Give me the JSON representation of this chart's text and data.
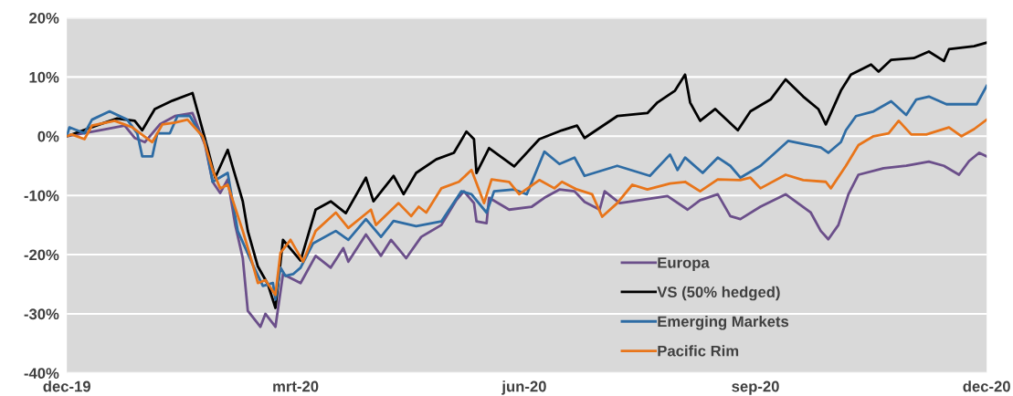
{
  "chart_data": {
    "type": "line",
    "xlim": [
      "2019-12-31",
      "2020-12-31"
    ],
    "xticks": [
      {
        "value": "2019-12-31",
        "label": "dec-19"
      },
      {
        "value": "2020-03-31",
        "label": "mrt-20"
      },
      {
        "value": "2020-06-30",
        "label": "jun-20"
      },
      {
        "value": "2020-09-30",
        "label": "sep-20"
      },
      {
        "value": "2020-12-31",
        "label": "dec-20"
      }
    ],
    "ylim": [
      -40,
      20
    ],
    "yticks": [
      {
        "value": -40,
        "label": "-40%"
      },
      {
        "value": -30,
        "label": "-30%"
      },
      {
        "value": -20,
        "label": "-20%"
      },
      {
        "value": -10,
        "label": "-10%"
      },
      {
        "value": 0,
        "label": "0%"
      },
      {
        "value": 10,
        "label": "10%"
      },
      {
        "value": 20,
        "label": "20%"
      }
    ],
    "grid": "y",
    "legend": "bottom right",
    "marker": "none",
    "line_style": "solid",
    "series": [
      {
        "name": "Europa",
        "color": "#6b4f8a",
        "x": [
          "2019-12-31",
          "2020-01-13",
          "2020-01-23",
          "2020-01-27",
          "2020-01-31",
          "2020-02-06",
          "2020-02-12",
          "2020-02-19",
          "2020-02-24",
          "2020-02-27",
          "2020-03-01",
          "2020-03-04",
          "2020-03-07",
          "2020-03-10",
          "2020-03-12",
          "2020-03-17",
          "2020-03-19",
          "2020-03-23",
          "2020-03-26",
          "2020-04-02",
          "2020-04-08",
          "2020-04-14",
          "2020-04-19",
          "2020-04-21",
          "2020-04-28",
          "2020-05-04",
          "2020-05-08",
          "2020-05-14",
          "2020-05-20",
          "2020-05-28",
          "2020-06-03",
          "2020-06-06",
          "2020-06-10",
          "2020-06-11",
          "2020-06-15",
          "2020-06-16",
          "2020-06-24",
          "2020-07-03",
          "2020-07-08",
          "2020-07-14",
          "2020-07-20",
          "2020-07-24",
          "2020-07-30",
          "2020-08-01",
          "2020-08-07",
          "2020-08-15",
          "2020-08-26",
          "2020-09-03",
          "2020-09-08",
          "2020-09-15",
          "2020-09-20",
          "2020-09-24",
          "2020-10-02",
          "2020-10-12",
          "2020-10-22",
          "2020-10-26",
          "2020-10-29",
          "2020-11-02",
          "2020-11-06",
          "2020-11-10",
          "2020-11-20",
          "2020-11-29",
          "2020-12-08",
          "2020-12-14",
          "2020-12-20",
          "2020-12-24",
          "2020-12-28",
          "2020-12-31"
        ],
        "values": [
          0,
          1,
          1.8,
          -0.3,
          -1,
          2,
          3.4,
          3.9,
          -1.5,
          -7.7,
          -9.6,
          -7.3,
          -15,
          -20.6,
          -29.5,
          -32.2,
          -30,
          -32.2,
          -23.3,
          -24.8,
          -20.2,
          -22.2,
          -18.9,
          -21.2,
          -16.6,
          -20.2,
          -17.5,
          -20.6,
          -17,
          -15,
          -10.8,
          -9.3,
          -11.3,
          -14.4,
          -14.7,
          -10.4,
          -12.4,
          -11.9,
          -10.4,
          -9,
          -9.3,
          -11.1,
          -12.4,
          -9.3,
          -11.3,
          -10.8,
          -10.1,
          -12.4,
          -10.8,
          -9.8,
          -13.5,
          -14,
          -11.9,
          -9.8,
          -12.9,
          -16,
          -17.4,
          -15,
          -9.8,
          -6.5,
          -5.4,
          -5,
          -4.3,
          -5,
          -6.5,
          -4.2,
          -2.8,
          -3.4
        ]
      },
      {
        "name": "VS (50% hedged)",
        "color": "#000000",
        "x": [
          "2019-12-31",
          "2020-01-13",
          "2020-01-20",
          "2020-01-27",
          "2020-01-30",
          "2020-02-04",
          "2020-02-11",
          "2020-02-19",
          "2020-02-25",
          "2020-02-28",
          "2020-03-04",
          "2020-03-10",
          "2020-03-12",
          "2020-03-16",
          "2020-03-20",
          "2020-03-23",
          "2020-03-26",
          "2020-04-02",
          "2020-04-08",
          "2020-04-14",
          "2020-04-20",
          "2020-04-28",
          "2020-05-01",
          "2020-05-09",
          "2020-05-13",
          "2020-05-18",
          "2020-05-26",
          "2020-06-02",
          "2020-06-07",
          "2020-06-10",
          "2020-06-11",
          "2020-06-16",
          "2020-06-26",
          "2020-07-06",
          "2020-07-15",
          "2020-07-21",
          "2020-07-24",
          "2020-08-06",
          "2020-08-18",
          "2020-08-22",
          "2020-08-29",
          "2020-09-02",
          "2020-09-04",
          "2020-09-08",
          "2020-09-14",
          "2020-09-23",
          "2020-09-28",
          "2020-10-06",
          "2020-10-12",
          "2020-10-19",
          "2020-10-25",
          "2020-10-28",
          "2020-11-03",
          "2020-11-07",
          "2020-11-15",
          "2020-11-18",
          "2020-11-23",
          "2020-12-02",
          "2020-12-08",
          "2020-12-14",
          "2020-12-16",
          "2020-12-26",
          "2020-12-31"
        ],
        "values": [
          0,
          2,
          3,
          2.6,
          1,
          4.6,
          6,
          7.3,
          -2,
          -7,
          -2.3,
          -11,
          -16,
          -22,
          -25,
          -29,
          -17.5,
          -21,
          -12.4,
          -11,
          -13,
          -7,
          -11,
          -6.7,
          -9.8,
          -6.2,
          -3.9,
          -2.8,
          0.8,
          -0.5,
          -6.2,
          -2,
          -5.1,
          -0.5,
          1,
          1.8,
          -0.3,
          3.4,
          3.9,
          5.7,
          7.7,
          10.4,
          5.7,
          2.6,
          4.6,
          1,
          4.2,
          6.2,
          9.6,
          6.7,
          4.6,
          2,
          7.7,
          10.4,
          12.1,
          10.9,
          12.9,
          13.2,
          14.3,
          12.7,
          14.7,
          15.2,
          15.8
        ]
      },
      {
        "name": "Emerging Markets",
        "color": "#2e6ca4",
        "x": [
          "2019-12-31",
          "2020-01-01",
          "2020-01-07",
          "2020-01-10",
          "2020-01-17",
          "2020-01-24",
          "2020-01-28",
          "2020-01-30",
          "2020-02-03",
          "2020-02-05",
          "2020-02-10",
          "2020-02-13",
          "2020-02-18",
          "2020-02-24",
          "2020-02-27",
          "2020-03-04",
          "2020-03-08",
          "2020-03-14",
          "2020-03-18",
          "2020-03-22",
          "2020-03-23",
          "2020-03-25",
          "2020-03-27",
          "2020-03-30",
          "2020-04-02",
          "2020-04-07",
          "2020-04-16",
          "2020-04-21",
          "2020-04-28",
          "2020-05-04",
          "2020-05-09",
          "2020-05-18",
          "2020-05-28",
          "2020-06-05",
          "2020-06-09",
          "2020-06-15",
          "2020-06-18",
          "2020-06-26",
          "2020-07-01",
          "2020-07-08",
          "2020-07-14",
          "2020-07-20",
          "2020-07-24",
          "2020-08-06",
          "2020-08-19",
          "2020-08-27",
          "2020-08-30",
          "2020-09-02",
          "2020-09-09",
          "2020-09-15",
          "2020-09-20",
          "2020-09-24",
          "2020-10-02",
          "2020-10-07",
          "2020-10-13",
          "2020-10-26",
          "2020-10-29",
          "2020-11-03",
          "2020-11-05",
          "2020-11-09",
          "2020-11-16",
          "2020-11-23",
          "2020-11-29",
          "2020-12-03",
          "2020-12-08",
          "2020-12-15",
          "2020-12-21",
          "2020-12-27",
          "2020-12-31"
        ],
        "values": [
          0,
          1.5,
          0.5,
          2.8,
          4.2,
          2.8,
          0.5,
          -3.4,
          -3.4,
          0.5,
          0.5,
          3.4,
          3.4,
          -1,
          -7.7,
          -6.2,
          -16,
          -21.7,
          -25.3,
          -24.8,
          -27.6,
          -22.2,
          -23.6,
          -23.3,
          -22.2,
          -18.1,
          -16,
          -17.5,
          -14,
          -17,
          -14.3,
          -15.2,
          -14.4,
          -9.3,
          -9.8,
          -12.9,
          -9.3,
          -9,
          -9.8,
          -2.6,
          -4.7,
          -3.6,
          -6.7,
          -5,
          -6.7,
          -3.1,
          -5.7,
          -3.6,
          -6.2,
          -3.6,
          -5,
          -7,
          -5,
          -3.1,
          -0.8,
          -1.9,
          -2.8,
          -1,
          1,
          3.4,
          4.2,
          5.9,
          3.6,
          6.2,
          6.7,
          5.4,
          5.4,
          5.4,
          8.5
        ]
      },
      {
        "name": "Pacific Rim",
        "color": "#e8751a",
        "x": [
          "2019-12-31",
          "2020-01-02",
          "2020-01-07",
          "2020-01-10",
          "2020-01-19",
          "2020-01-26",
          "2020-02-03",
          "2020-02-07",
          "2020-02-12",
          "2020-02-17",
          "2020-02-23",
          "2020-02-27",
          "2020-03-01",
          "2020-03-04",
          "2020-03-10",
          "2020-03-14",
          "2020-03-16",
          "2020-03-19",
          "2020-03-23",
          "2020-03-25",
          "2020-03-29",
          "2020-04-03",
          "2020-04-08",
          "2020-04-16",
          "2020-04-21",
          "2020-04-30",
          "2020-05-02",
          "2020-05-11",
          "2020-05-16",
          "2020-05-19",
          "2020-05-22",
          "2020-05-28",
          "2020-06-04",
          "2020-06-09",
          "2020-06-14",
          "2020-06-17",
          "2020-06-24",
          "2020-06-28",
          "2020-07-06",
          "2020-07-12",
          "2020-07-15",
          "2020-07-21",
          "2020-07-27",
          "2020-07-31",
          "2020-08-06",
          "2020-08-12",
          "2020-08-18",
          "2020-08-27",
          "2020-09-02",
          "2020-09-08",
          "2020-09-15",
          "2020-09-24",
          "2020-09-28",
          "2020-10-02",
          "2020-10-12",
          "2020-10-19",
          "2020-10-28",
          "2020-10-30",
          "2020-11-05",
          "2020-11-10",
          "2020-11-16",
          "2020-11-22",
          "2020-11-26",
          "2020-12-01",
          "2020-12-07",
          "2020-12-16",
          "2020-12-21",
          "2020-12-26",
          "2020-12-31"
        ],
        "values": [
          0,
          0.3,
          -0.5,
          1.8,
          2.6,
          1.5,
          -1,
          2,
          2.3,
          2.8,
          0,
          -5.7,
          -8.8,
          -8.2,
          -16,
          -21.7,
          -24.8,
          -24.3,
          -26.8,
          -19.7,
          -17.5,
          -21.2,
          -16,
          -12.9,
          -15.5,
          -12.4,
          -15,
          -11.3,
          -13.5,
          -11.9,
          -12.9,
          -8.8,
          -7.7,
          -5.7,
          -11.3,
          -7.3,
          -7.7,
          -9.8,
          -7.4,
          -8.8,
          -7.7,
          -9,
          -9.8,
          -13.6,
          -11.3,
          -8.2,
          -9,
          -8,
          -7.7,
          -9.3,
          -7.3,
          -7.4,
          -7,
          -8.8,
          -6.5,
          -7.4,
          -7.7,
          -8.8,
          -5,
          -1.5,
          0,
          0.5,
          2.6,
          0.3,
          0.3,
          1.5,
          0,
          1.2,
          2.8
        ]
      }
    ]
  }
}
